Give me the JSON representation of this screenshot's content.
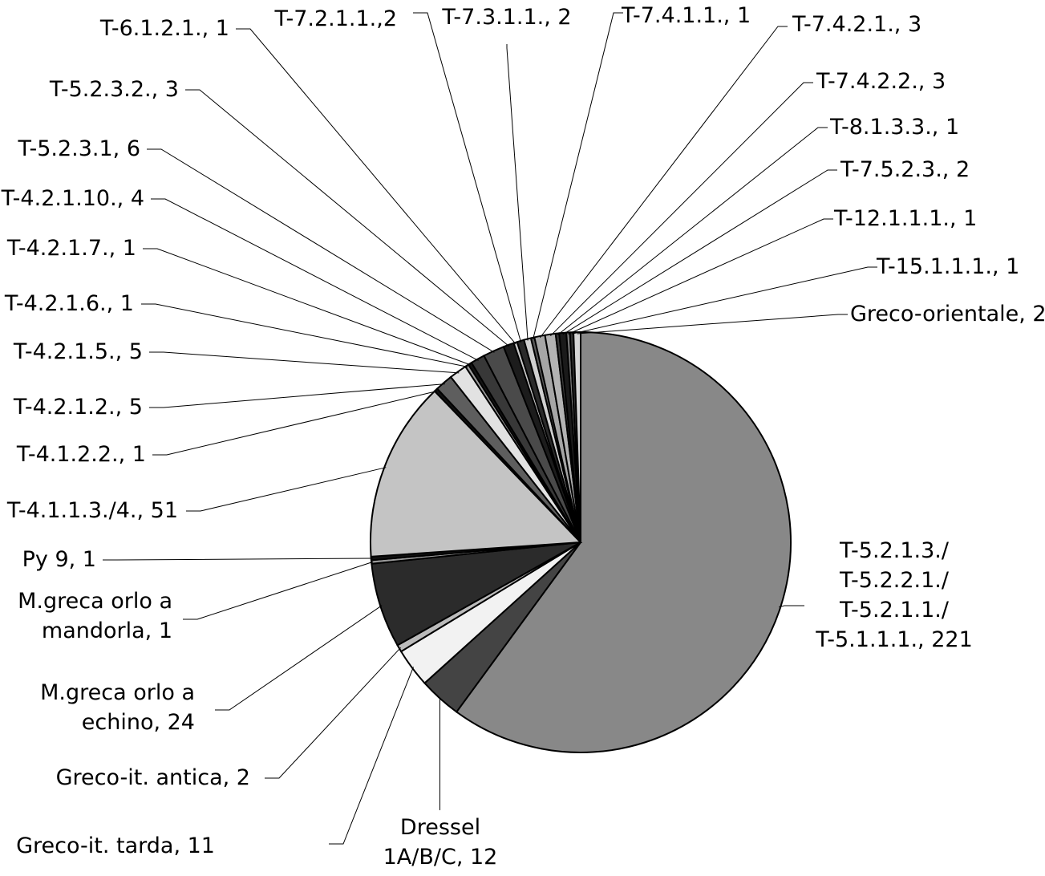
{
  "chart_data": {
    "type": "pie",
    "title": "",
    "start_angle_deg": 0,
    "direction": "clockwise",
    "legend": "none",
    "slices": [
      {
        "label": "T-5.2.1.3./ T-5.2.2.1./ T-5.2.1.1./ T-5.1.1.1.",
        "label_lines": [
          "T-5.2.1.3./",
          "T-5.2.2.1./",
          "T-5.2.1.1./",
          "T-5.1.1.1., 221"
        ],
        "value": 221,
        "fill": "#888888"
      },
      {
        "label": "Dressel 1A/B/C",
        "label_lines": [
          "Dressel",
          "1A/B/C, 12"
        ],
        "value": 12,
        "fill": "#444444"
      },
      {
        "label": "Greco-it. tarda",
        "label_lines": [
          "Greco-it. tarda, 11"
        ],
        "value": 11,
        "fill": "#f2f2f2"
      },
      {
        "label": "Greco-it. antica",
        "label_lines": [
          "Greco-it. antica, 2"
        ],
        "value": 2,
        "fill": "#bbbbbb"
      },
      {
        "label": "M.greca orlo a echino",
        "label_lines": [
          "M.greca orlo a",
          "echino, 24"
        ],
        "value": 24,
        "fill": "#2b2b2b"
      },
      {
        "label": "M.greca orlo a mandorla",
        "label_lines": [
          "M.greca orlo a",
          "mandorla, 1"
        ],
        "value": 1,
        "fill": "#999999"
      },
      {
        "label": "Py 9",
        "label_lines": [
          "Py 9, 1"
        ],
        "value": 1,
        "fill": "#111111"
      },
      {
        "label": "T-4.1.1.3./4.",
        "label_lines": [
          "T-4.1.1.3./4., 51"
        ],
        "value": 51,
        "fill": "#c4c4c4"
      },
      {
        "label": "T-4.1.2.2.",
        "label_lines": [
          "T-4.1.2.2., 1"
        ],
        "value": 1,
        "fill": "#111111"
      },
      {
        "label": "T-4.2.1.2.",
        "label_lines": [
          "T-4.2.1.2., 5"
        ],
        "value": 5,
        "fill": "#5e5e5e"
      },
      {
        "label": "T-4.2.1.5.",
        "label_lines": [
          "T-4.2.1.5., 5"
        ],
        "value": 5,
        "fill": "#e2e2e2"
      },
      {
        "label": "T-4.2.1.6.",
        "label_lines": [
          "T-4.2.1.6., 1"
        ],
        "value": 1,
        "fill": "#9a9a9a"
      },
      {
        "label": "T-4.2.1.7.",
        "label_lines": [
          "T-4.2.1.7., 1"
        ],
        "value": 1,
        "fill": "#141414"
      },
      {
        "label": "T-4.2.1.10.",
        "label_lines": [
          "T-4.2.1.10., 4"
        ],
        "value": 4,
        "fill": "#383838"
      },
      {
        "label": "T-5.2.3.1",
        "label_lines": [
          "T-5.2.3.1, 6"
        ],
        "value": 6,
        "fill": "#4a4a4a"
      },
      {
        "label": "T-5.2.3.2.",
        "label_lines": [
          "T-5.2.3.2., 3"
        ],
        "value": 3,
        "fill": "#1c1c1c"
      },
      {
        "label": "T-6.1.2.1.",
        "label_lines": [
          "T-6.1.2.1., 1"
        ],
        "value": 1,
        "fill": "#c9c9c9"
      },
      {
        "label": "T-7.2.1.1.",
        "label_lines": [
          "T-7.2.1.1.,2"
        ],
        "value": 2,
        "fill": "#2a2a2a"
      },
      {
        "label": "T-7.3.1.1.",
        "label_lines": [
          "T-7.3.1.1., 2"
        ],
        "value": 2,
        "fill": "#d0d0d0"
      },
      {
        "label": "T-7.4.1.1.",
        "label_lines": [
          "T-7.4.1.1., 1"
        ],
        "value": 1,
        "fill": "#595959"
      },
      {
        "label": "T-7.4.2.1.",
        "label_lines": [
          "T-7.4.2.1., 3"
        ],
        "value": 3,
        "fill": "#a6a6a6"
      },
      {
        "label": "T-7.4.2.2.",
        "label_lines": [
          "T-7.4.2.2., 3"
        ],
        "value": 3,
        "fill": "#b3b3b3"
      },
      {
        "label": "T-8.1.3.3.",
        "label_lines": [
          "T-8.1.3.3., 1"
        ],
        "value": 1,
        "fill": "#3a3a3a"
      },
      {
        "label": "T-7.5.2.3.",
        "label_lines": [
          "T-7.5.2.3., 2"
        ],
        "value": 2,
        "fill": "#1a1a1a"
      },
      {
        "label": "T-12.1.1.1.",
        "label_lines": [
          "T-12.1.1.1., 1"
        ],
        "value": 1,
        "fill": "#7a7a7a"
      },
      {
        "label": "T-15.1.1.1.",
        "label_lines": [
          "T-15.1.1.1., 1"
        ],
        "value": 1,
        "fill": "#333333"
      },
      {
        "label": "Greco-orientale",
        "label_lines": [
          "Greco-orientale, 2"
        ],
        "value": 2,
        "fill": "#d6d6d6"
      }
    ]
  }
}
